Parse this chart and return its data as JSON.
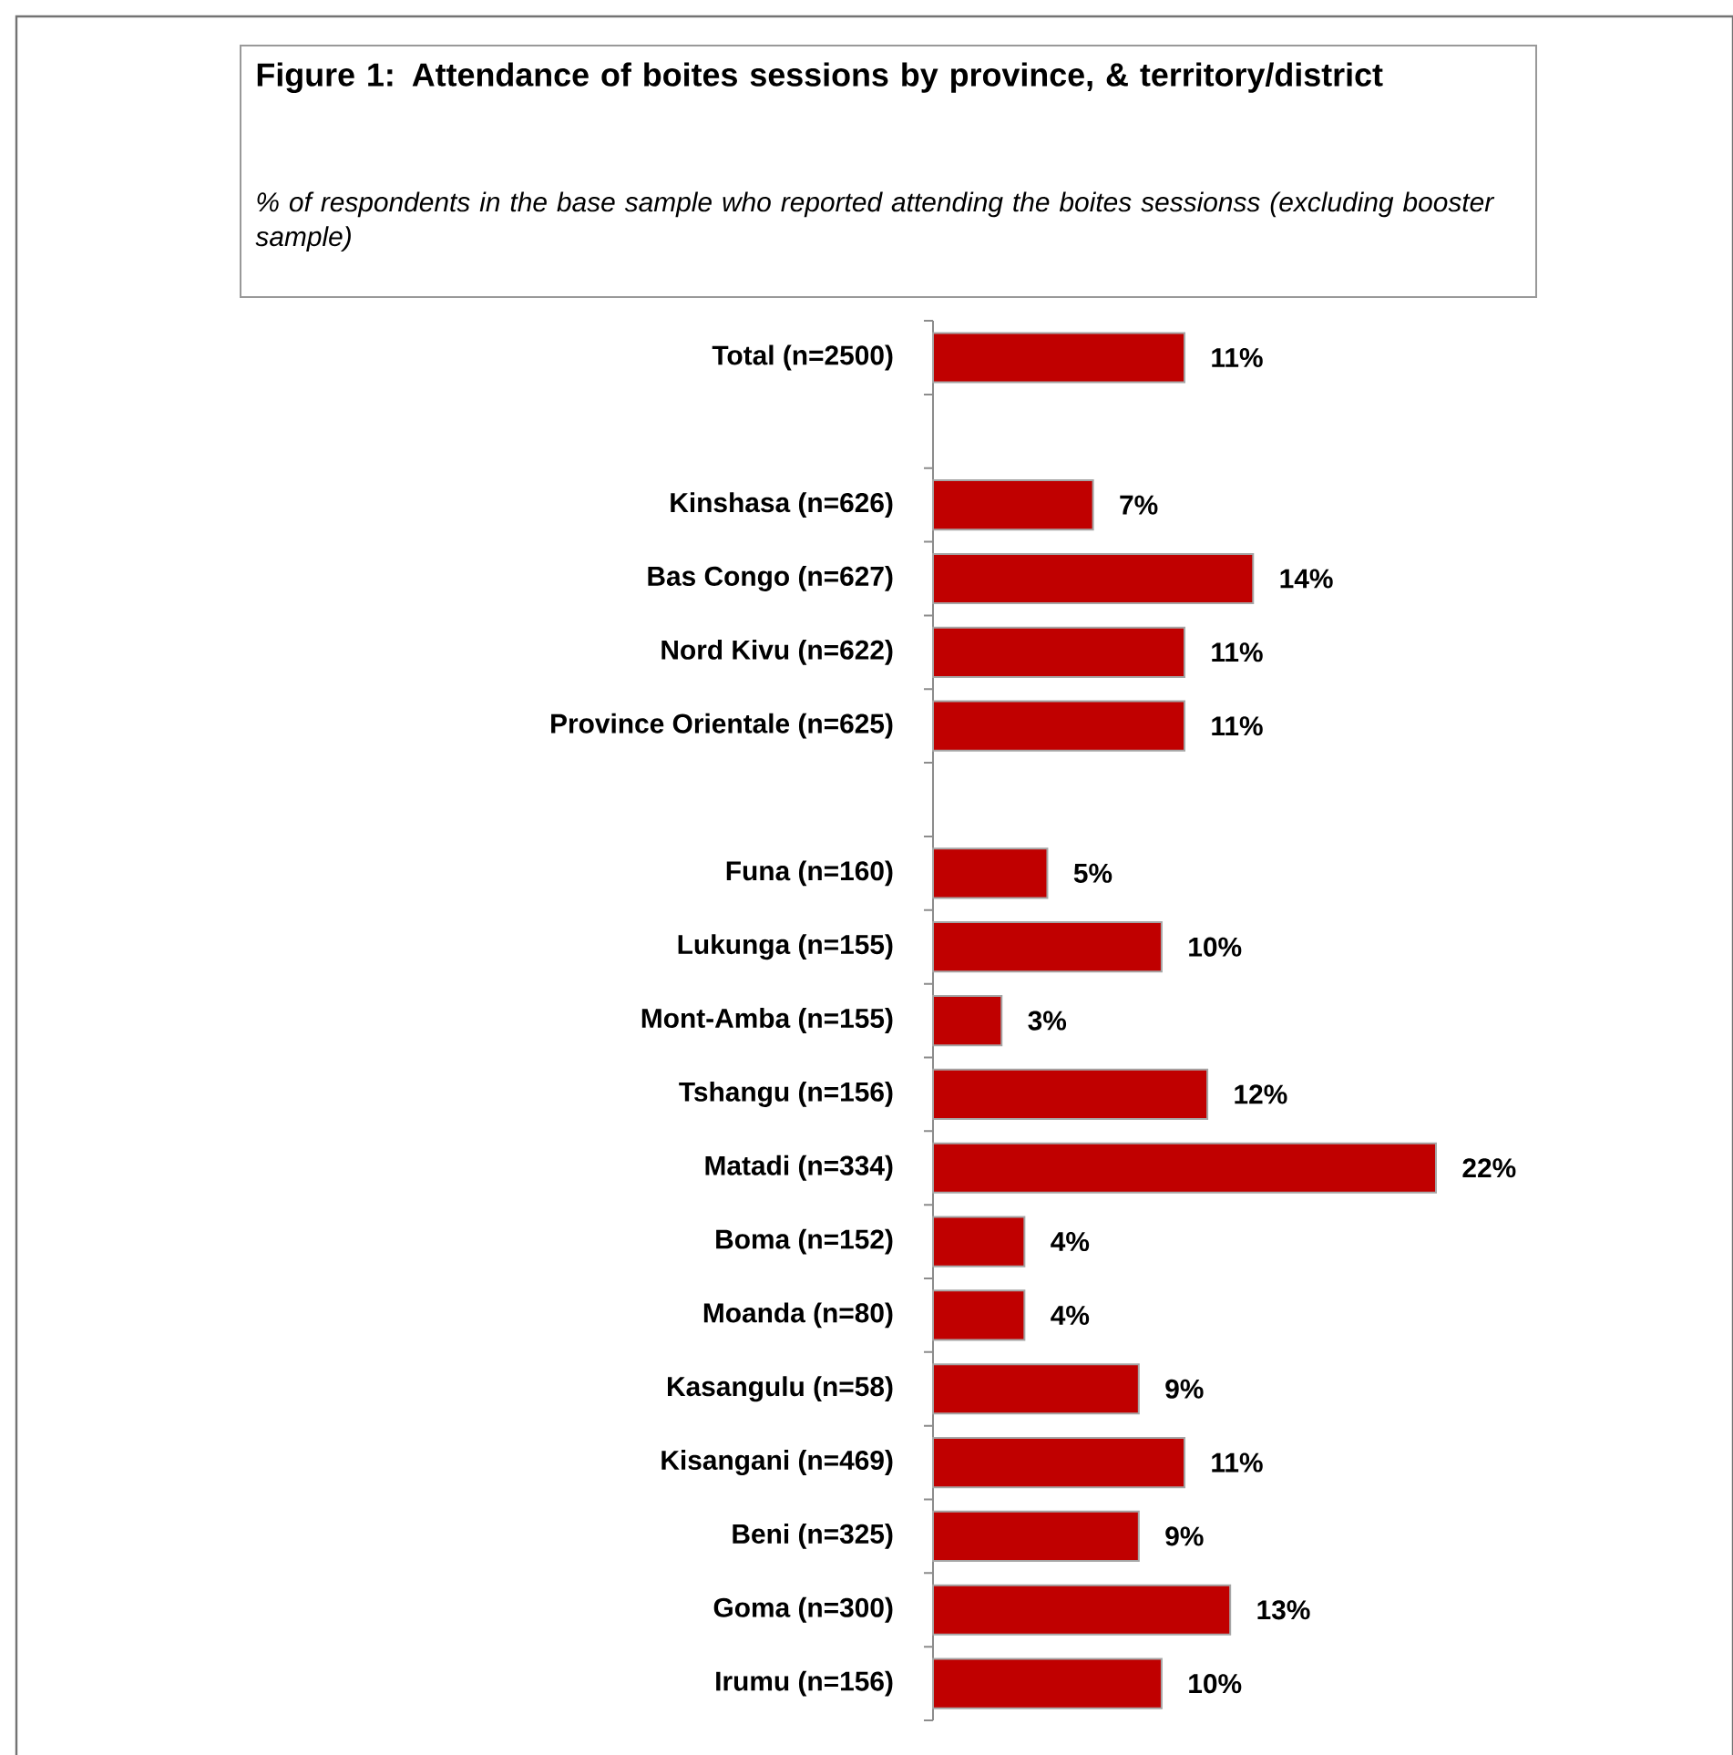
{
  "chart_data": {
    "type": "bar",
    "orientation": "horizontal",
    "title": "Figure 1: Attendance of boites sessions by province, & territory/district",
    "subtitle": "% of respondents in the base sample who reported attending the boites sessionss (excluding booster sample)",
    "categories": [
      "Total (n=2500)",
      null,
      "Kinshasa (n=626)",
      "Bas Congo (n=627)",
      "Nord Kivu (n=622)",
      "Province Orientale (n=625)",
      null,
      "Funa (n=160)",
      "Lukunga (n=155)",
      "Mont-Amba (n=155)",
      "Tshangu (n=156)",
      "Matadi (n=334)",
      "Boma (n=152)",
      "Moanda (n=80)",
      "Kasangulu (n=58)",
      "Kisangani (n=469)",
      "Beni (n=325)",
      "Goma (n=300)",
      "Irumu (n=156)"
    ],
    "values": [
      11,
      null,
      7,
      14,
      11,
      11,
      null,
      5,
      10,
      3,
      12,
      22,
      4,
      4,
      9,
      11,
      9,
      13,
      10
    ],
    "value_labels": [
      "11%",
      null,
      "7%",
      "14%",
      "11%",
      "11%",
      null,
      "5%",
      "10%",
      "3%",
      "12%",
      "22%",
      "4%",
      "4%",
      "9%",
      "11%",
      "9%",
      "13%",
      "10%"
    ],
    "color": "#c00000"
  }
}
